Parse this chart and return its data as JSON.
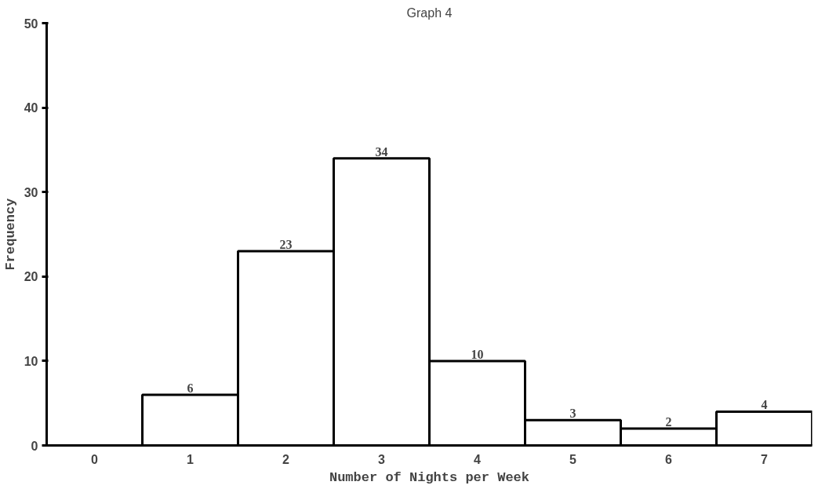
{
  "chart_data": {
    "type": "bar",
    "title": "Graph 4",
    "xlabel": "Number of Nights per Week",
    "ylabel": "Frequency",
    "categories": [
      "0",
      "1",
      "2",
      "3",
      "4",
      "5",
      "6",
      "7"
    ],
    "values": [
      null,
      6,
      23,
      34,
      10,
      3,
      2,
      4
    ],
    "value_labels": [
      null,
      "6",
      "23",
      "34",
      "10",
      "3",
      "2",
      "4"
    ],
    "color": "#ffffff",
    "ylim": [
      0,
      50
    ],
    "yticks": [
      0,
      10,
      20,
      30,
      40,
      50
    ],
    "grid": false
  }
}
